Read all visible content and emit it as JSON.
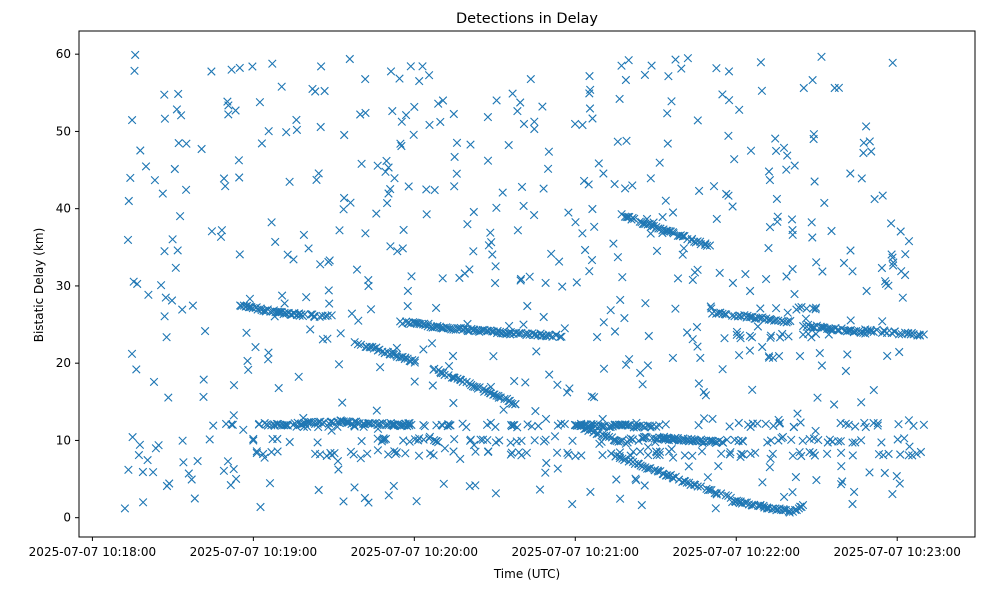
{
  "chart_data": {
    "type": "scatter",
    "title": "Detections in Delay",
    "xlabel": "Time (UTC)",
    "ylabel": "Bistatic Delay (km)",
    "marker": "x",
    "color": "#1f77b4",
    "grid": false,
    "legend": "none",
    "xlim": [
      "2025-07-07 10:17:55",
      "2025-07-07 10:23:29"
    ],
    "ylim": [
      -2.5,
      63
    ],
    "x_ticks": [
      "2025-07-07 10:18:00",
      "2025-07-07 10:19:00",
      "2025-07-07 10:20:00",
      "2025-07-07 10:21:00",
      "2025-07-07 10:22:00",
      "2025-07-07 10:23:00"
    ],
    "y_ticks": [
      0,
      10,
      20,
      30,
      40,
      50,
      60
    ],
    "tracks": [
      {
        "description": "descending track",
        "t_start": "2025-07-07 10:18:55",
        "t_end": "2025-07-07 10:19:10",
        "delay_start": 27.5,
        "delay_end": 26.5
      },
      {
        "description": "descending track",
        "t_start": "2025-07-07 10:19:10",
        "t_end": "2025-07-07 10:19:28",
        "delay_start": 26.5,
        "delay_end": 26.0
      },
      {
        "description": "descending track",
        "t_start": "2025-07-07 10:19:38",
        "t_end": "2025-07-07 10:20:00",
        "delay_start": 22.7,
        "delay_end": 20.2
      },
      {
        "description": "descending track",
        "t_start": "2025-07-07 10:19:55",
        "t_end": "2025-07-07 10:20:05",
        "delay_start": 25.3,
        "delay_end": 25.0
      },
      {
        "description": "descending track",
        "t_start": "2025-07-07 10:20:05",
        "t_end": "2025-07-07 10:20:35",
        "delay_start": 24.8,
        "delay_end": 23.9
      },
      {
        "description": "descending track",
        "t_start": "2025-07-07 10:20:35",
        "t_end": "2025-07-07 10:20:55",
        "delay_start": 23.9,
        "delay_end": 23.5
      },
      {
        "description": "descending track",
        "t_start": "2025-07-07 10:20:07",
        "t_end": "2025-07-07 10:20:38",
        "delay_start": 19.3,
        "delay_end": 14.7
      },
      {
        "description": "descending track",
        "t_start": "2025-07-07 10:21:17",
        "t_end": "2025-07-07 10:21:40",
        "delay_start": 39.2,
        "delay_end": 36.4
      },
      {
        "description": "descending track",
        "t_start": "2025-07-07 10:21:40",
        "t_end": "2025-07-07 10:21:50",
        "delay_start": 36.4,
        "delay_end": 35.2
      },
      {
        "description": "descending track",
        "t_start": "2025-07-07 10:21:52",
        "t_end": "2025-07-07 10:22:20",
        "delay_start": 26.5,
        "delay_end": 25.4
      },
      {
        "description": "descending track",
        "t_start": "2025-07-07 10:21:00",
        "t_end": "2025-07-07 10:21:30",
        "delay_start": 12.0,
        "delay_end": 11.8
      },
      {
        "description": "descending track",
        "t_start": "2025-07-07 10:21:15",
        "t_end": "2025-07-07 10:21:58",
        "delay_start": 8.0,
        "delay_end": 2.5
      },
      {
        "description": "descending track",
        "t_start": "2025-07-07 10:21:58",
        "t_end": "2025-07-07 10:22:20",
        "delay_start": 2.2,
        "delay_end": 0.8
      },
      {
        "description": "descending track",
        "t_start": "2025-07-07 10:22:25",
        "t_end": "2025-07-07 10:22:48",
        "delay_start": 24.9,
        "delay_end": 24.0
      },
      {
        "description": "descending track",
        "t_start": "2025-07-07 10:22:48",
        "t_end": "2025-07-07 10:23:10",
        "delay_start": 24.3,
        "delay_end": 23.6
      },
      {
        "description": "ascending track",
        "t_start": "2025-07-07 10:19:05",
        "t_end": "2025-07-07 10:19:35",
        "delay_start": 11.9,
        "delay_end": 12.5
      },
      {
        "description": "ascending track",
        "t_start": "2025-07-07 10:19:35",
        "t_end": "2025-07-07 10:19:58",
        "delay_start": 12.3,
        "delay_end": 12.0
      },
      {
        "description": "ascending track",
        "t_start": "2025-07-07 10:21:00",
        "t_end": "2025-07-07 10:21:20",
        "delay_start": 12.0,
        "delay_end": 9.5
      },
      {
        "description": "ascending track",
        "t_start": "2025-07-07 10:21:25",
        "t_end": "2025-07-07 10:21:55",
        "delay_start": 10.4,
        "delay_end": 9.8
      },
      {
        "description": "ascending track",
        "t_start": "2025-07-07 10:22:20",
        "t_end": "2025-07-07 10:22:25",
        "delay_start": 0.7,
        "delay_end": 1.5
      }
    ],
    "dense_rows": [
      {
        "t_start": "2025-07-07 10:18:40",
        "t_end": "2025-07-07 10:23:10",
        "delay": 12.0
      },
      {
        "t_start": "2025-07-07 10:18:40",
        "t_end": "2025-07-07 10:23:10",
        "delay": 10.0
      },
      {
        "t_start": "2025-07-07 10:18:40",
        "t_end": "2025-07-07 10:23:10",
        "delay": 8.3
      },
      {
        "t_start": "2025-07-07 10:22:20",
        "t_end": "2025-07-07 10:22:30",
        "delay": 27.2
      },
      {
        "t_start": "2025-07-07 10:22:00",
        "t_end": "2025-07-07 10:22:30",
        "delay": 23.5
      },
      {
        "t_start": "2025-07-07 10:22:10",
        "t_end": "2025-07-07 10:22:20",
        "delay": 20.7
      }
    ],
    "clutter": {
      "t_start": "2025-07-07 10:18:12",
      "t_end": "2025-07-07 10:23:05",
      "delay_min": 1.0,
      "delay_max": 60.0,
      "count": 560
    }
  }
}
